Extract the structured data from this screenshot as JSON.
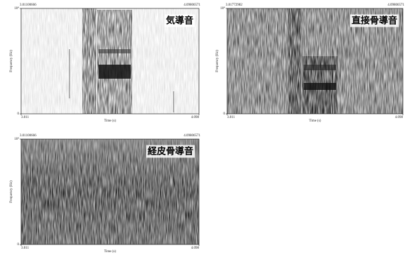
{
  "chart_data": [
    {
      "type": "spectrogram",
      "title": "気導音",
      "window": [
        3.01100666,
        4.09806571
      ],
      "xlim": [
        3.011,
        4.098
      ],
      "xticks": [
        3.011,
        4.098
      ],
      "xlabel": "Time (s)",
      "ylim": [
        0,
        10000
      ],
      "yticks": [
        0,
        {
          "value": 10000,
          "label": "10⁴"
        }
      ],
      "ylabel": "Frequency (Hz)"
    },
    {
      "type": "spectrogram",
      "title": "直接骨導音",
      "window": [
        3.01772982,
        4.09806571
      ],
      "xlim": [
        3.011,
        4.098
      ],
      "xticks": [
        3.011,
        4.098
      ],
      "xlabel": "Time (s)",
      "ylim": [
        0,
        10000
      ],
      "yticks": [
        0,
        {
          "value": 10000,
          "label": "10⁴"
        }
      ],
      "ylabel": "Frequency (Hz)"
    },
    {
      "type": "spectrogram",
      "title": "経皮骨導音",
      "window": [
        3.01100666,
        4.09806571
      ],
      "xlim": [
        3.011,
        4.098
      ],
      "xticks": [
        3.011,
        4.098
      ],
      "xlabel": "Time (s)",
      "ylim": [
        0,
        10000
      ],
      "yticks": [
        0,
        {
          "value": 10000,
          "label": "10⁴"
        }
      ],
      "ylabel": "Frequency (Hz)"
    }
  ]
}
